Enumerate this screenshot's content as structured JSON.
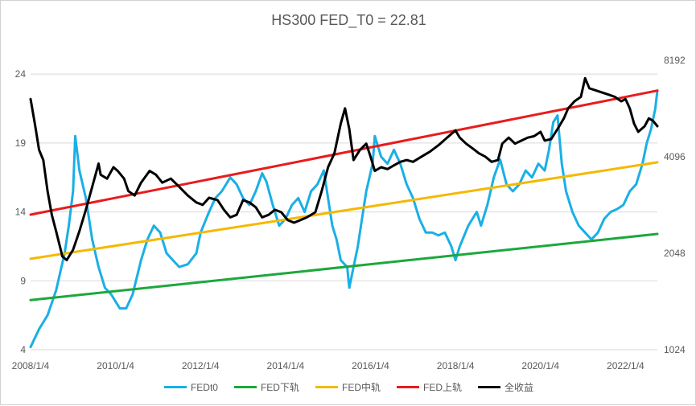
{
  "chart_data": {
    "type": "line",
    "title": "HS300 FED_T0 = 22.81",
    "x_ticks": [
      "2008/1/4",
      "2010/1/4",
      "2012/1/4",
      "2014/1/4",
      "2016/1/4",
      "2018/1/4",
      "2020/1/4",
      "2022/1/4"
    ],
    "x_range": [
      2008.0,
      2022.75
    ],
    "y_left": {
      "ticks": [
        4,
        9,
        14,
        19,
        24
      ],
      "range": [
        4,
        25
      ]
    },
    "y_right": {
      "ticks": [
        1024,
        2048,
        4096,
        8192
      ],
      "range": [
        1024,
        8192
      ],
      "scale": "log"
    },
    "grid": "horizontal",
    "legend_position": "bottom",
    "series": [
      {
        "name": "FEDt0",
        "axis": "left",
        "color": "#1AAFE6",
        "points": [
          [
            2008.0,
            4.2
          ],
          [
            2008.2,
            5.5
          ],
          [
            2008.4,
            6.5
          ],
          [
            2008.6,
            8.3
          ],
          [
            2008.8,
            11.0
          ],
          [
            2008.9,
            13.0
          ],
          [
            2009.0,
            15.5
          ],
          [
            2009.05,
            19.5
          ],
          [
            2009.15,
            17.0
          ],
          [
            2009.3,
            15.0
          ],
          [
            2009.45,
            12.0
          ],
          [
            2009.6,
            10.0
          ],
          [
            2009.75,
            8.5
          ],
          [
            2009.9,
            8.0
          ],
          [
            2010.1,
            7.0
          ],
          [
            2010.25,
            7.0
          ],
          [
            2010.4,
            8.0
          ],
          [
            2010.6,
            10.5
          ],
          [
            2010.75,
            12.0
          ],
          [
            2010.9,
            13.0
          ],
          [
            2011.05,
            12.5
          ],
          [
            2011.2,
            11.0
          ],
          [
            2011.35,
            10.5
          ],
          [
            2011.5,
            10.0
          ],
          [
            2011.7,
            10.2
          ],
          [
            2011.9,
            11.0
          ],
          [
            2012.0,
            12.5
          ],
          [
            2012.2,
            14.0
          ],
          [
            2012.35,
            15.0
          ],
          [
            2012.5,
            15.5
          ],
          [
            2012.7,
            16.5
          ],
          [
            2012.85,
            16.0
          ],
          [
            2013.0,
            15.0
          ],
          [
            2013.15,
            14.5
          ],
          [
            2013.3,
            15.5
          ],
          [
            2013.45,
            16.8
          ],
          [
            2013.55,
            16.2
          ],
          [
            2013.7,
            14.5
          ],
          [
            2013.85,
            13.0
          ],
          [
            2014.0,
            13.5
          ],
          [
            2014.15,
            14.5
          ],
          [
            2014.3,
            15.0
          ],
          [
            2014.45,
            14.0
          ],
          [
            2014.6,
            15.5
          ],
          [
            2014.75,
            16.0
          ],
          [
            2014.9,
            17.0
          ],
          [
            2015.0,
            15.0
          ],
          [
            2015.1,
            13.0
          ],
          [
            2015.2,
            12.0
          ],
          [
            2015.3,
            10.5
          ],
          [
            2015.45,
            10.0
          ],
          [
            2015.5,
            8.5
          ],
          [
            2015.6,
            10.0
          ],
          [
            2015.7,
            11.5
          ],
          [
            2015.8,
            13.5
          ],
          [
            2015.9,
            15.5
          ],
          [
            2016.05,
            17.5
          ],
          [
            2016.1,
            19.5
          ],
          [
            2016.25,
            18.0
          ],
          [
            2016.4,
            17.5
          ],
          [
            2016.55,
            18.5
          ],
          [
            2016.7,
            17.5
          ],
          [
            2016.85,
            16.0
          ],
          [
            2017.0,
            15.0
          ],
          [
            2017.15,
            13.5
          ],
          [
            2017.3,
            12.5
          ],
          [
            2017.45,
            12.5
          ],
          [
            2017.6,
            12.3
          ],
          [
            2017.75,
            12.5
          ],
          [
            2017.9,
            11.5
          ],
          [
            2018.0,
            10.5
          ],
          [
            2018.1,
            11.5
          ],
          [
            2018.3,
            13.0
          ],
          [
            2018.5,
            14.0
          ],
          [
            2018.6,
            13.0
          ],
          [
            2018.75,
            14.5
          ],
          [
            2018.9,
            16.5
          ],
          [
            2019.05,
            17.8
          ],
          [
            2019.2,
            16.0
          ],
          [
            2019.35,
            15.5
          ],
          [
            2019.5,
            16.0
          ],
          [
            2019.65,
            17.0
          ],
          [
            2019.8,
            16.5
          ],
          [
            2019.95,
            17.5
          ],
          [
            2020.1,
            17.0
          ],
          [
            2020.2,
            18.5
          ],
          [
            2020.3,
            20.5
          ],
          [
            2020.4,
            21.0
          ],
          [
            2020.5,
            17.5
          ],
          [
            2020.6,
            15.5
          ],
          [
            2020.75,
            14.0
          ],
          [
            2020.9,
            13.0
          ],
          [
            2021.05,
            12.5
          ],
          [
            2021.2,
            12.0
          ],
          [
            2021.35,
            12.5
          ],
          [
            2021.5,
            13.5
          ],
          [
            2021.65,
            14.0
          ],
          [
            2021.8,
            14.2
          ],
          [
            2021.95,
            14.5
          ],
          [
            2022.1,
            15.5
          ],
          [
            2022.25,
            16.0
          ],
          [
            2022.4,
            17.5
          ],
          [
            2022.5,
            19.0
          ],
          [
            2022.6,
            20.0
          ],
          [
            2022.7,
            21.5
          ],
          [
            2022.75,
            22.8
          ]
        ]
      },
      {
        "name": "FED下轨",
        "axis": "left",
        "color": "#1CA83C",
        "points": [
          [
            2008.0,
            7.6
          ],
          [
            2022.75,
            12.4
          ]
        ]
      },
      {
        "name": "FED中轨",
        "axis": "left",
        "color": "#F5B800",
        "points": [
          [
            2008.0,
            10.6
          ],
          [
            2022.75,
            17.6
          ]
        ]
      },
      {
        "name": "FED上轨",
        "axis": "left",
        "color": "#E81C1C",
        "points": [
          [
            2008.0,
            13.8
          ],
          [
            2022.75,
            22.8
          ]
        ]
      },
      {
        "name": "全收益",
        "axis": "right",
        "color": "#000000",
        "points": [
          [
            2008.0,
            6200
          ],
          [
            2008.1,
            5200
          ],
          [
            2008.2,
            4300
          ],
          [
            2008.3,
            4000
          ],
          [
            2008.4,
            3200
          ],
          [
            2008.5,
            2700
          ],
          [
            2008.6,
            2400
          ],
          [
            2008.75,
            2000
          ],
          [
            2008.85,
            1950
          ],
          [
            2009.0,
            2100
          ],
          [
            2009.15,
            2400
          ],
          [
            2009.3,
            2800
          ],
          [
            2009.45,
            3300
          ],
          [
            2009.6,
            3900
          ],
          [
            2009.65,
            3600
          ],
          [
            2009.8,
            3500
          ],
          [
            2009.95,
            3800
          ],
          [
            2010.05,
            3700
          ],
          [
            2010.2,
            3500
          ],
          [
            2010.3,
            3200
          ],
          [
            2010.45,
            3100
          ],
          [
            2010.6,
            3400
          ],
          [
            2010.8,
            3700
          ],
          [
            2010.95,
            3600
          ],
          [
            2011.1,
            3400
          ],
          [
            2011.3,
            3500
          ],
          [
            2011.5,
            3300
          ],
          [
            2011.7,
            3100
          ],
          [
            2011.9,
            2950
          ],
          [
            2012.05,
            2900
          ],
          [
            2012.2,
            3050
          ],
          [
            2012.4,
            3000
          ],
          [
            2012.55,
            2800
          ],
          [
            2012.7,
            2650
          ],
          [
            2012.85,
            2700
          ],
          [
            2013.0,
            3000
          ],
          [
            2013.15,
            2950
          ],
          [
            2013.3,
            2850
          ],
          [
            2013.45,
            2650
          ],
          [
            2013.6,
            2700
          ],
          [
            2013.75,
            2800
          ],
          [
            2013.9,
            2750
          ],
          [
            2014.05,
            2600
          ],
          [
            2014.2,
            2550
          ],
          [
            2014.35,
            2600
          ],
          [
            2014.5,
            2650
          ],
          [
            2014.7,
            2750
          ],
          [
            2014.85,
            3200
          ],
          [
            2015.0,
            3800
          ],
          [
            2015.15,
            4200
          ],
          [
            2015.3,
            5200
          ],
          [
            2015.4,
            5800
          ],
          [
            2015.5,
            5000
          ],
          [
            2015.6,
            4000
          ],
          [
            2015.75,
            4300
          ],
          [
            2015.9,
            4500
          ],
          [
            2016.0,
            4100
          ],
          [
            2016.1,
            3700
          ],
          [
            2016.25,
            3800
          ],
          [
            2016.4,
            3750
          ],
          [
            2016.55,
            3850
          ],
          [
            2016.7,
            3950
          ],
          [
            2016.85,
            4000
          ],
          [
            2017.0,
            3950
          ],
          [
            2017.2,
            4100
          ],
          [
            2017.4,
            4250
          ],
          [
            2017.6,
            4450
          ],
          [
            2017.8,
            4700
          ],
          [
            2018.0,
            4950
          ],
          [
            2018.1,
            4700
          ],
          [
            2018.25,
            4500
          ],
          [
            2018.4,
            4350
          ],
          [
            2018.55,
            4200
          ],
          [
            2018.7,
            4100
          ],
          [
            2018.85,
            3950
          ],
          [
            2019.0,
            4000
          ],
          [
            2019.1,
            4500
          ],
          [
            2019.25,
            4700
          ],
          [
            2019.4,
            4500
          ],
          [
            2019.55,
            4600
          ],
          [
            2019.7,
            4700
          ],
          [
            2019.85,
            4750
          ],
          [
            2020.0,
            4900
          ],
          [
            2020.1,
            4600
          ],
          [
            2020.25,
            4650
          ],
          [
            2020.4,
            5000
          ],
          [
            2020.55,
            5400
          ],
          [
            2020.65,
            5800
          ],
          [
            2020.8,
            6100
          ],
          [
            2020.95,
            6300
          ],
          [
            2021.05,
            7200
          ],
          [
            2021.15,
            6700
          ],
          [
            2021.3,
            6600
          ],
          [
            2021.45,
            6500
          ],
          [
            2021.6,
            6400
          ],
          [
            2021.75,
            6300
          ],
          [
            2021.9,
            6100
          ],
          [
            2022.0,
            6200
          ],
          [
            2022.1,
            5800
          ],
          [
            2022.2,
            5200
          ],
          [
            2022.3,
            4900
          ],
          [
            2022.45,
            5100
          ],
          [
            2022.55,
            5400
          ],
          [
            2022.65,
            5300
          ],
          [
            2022.75,
            5100
          ]
        ]
      }
    ]
  }
}
